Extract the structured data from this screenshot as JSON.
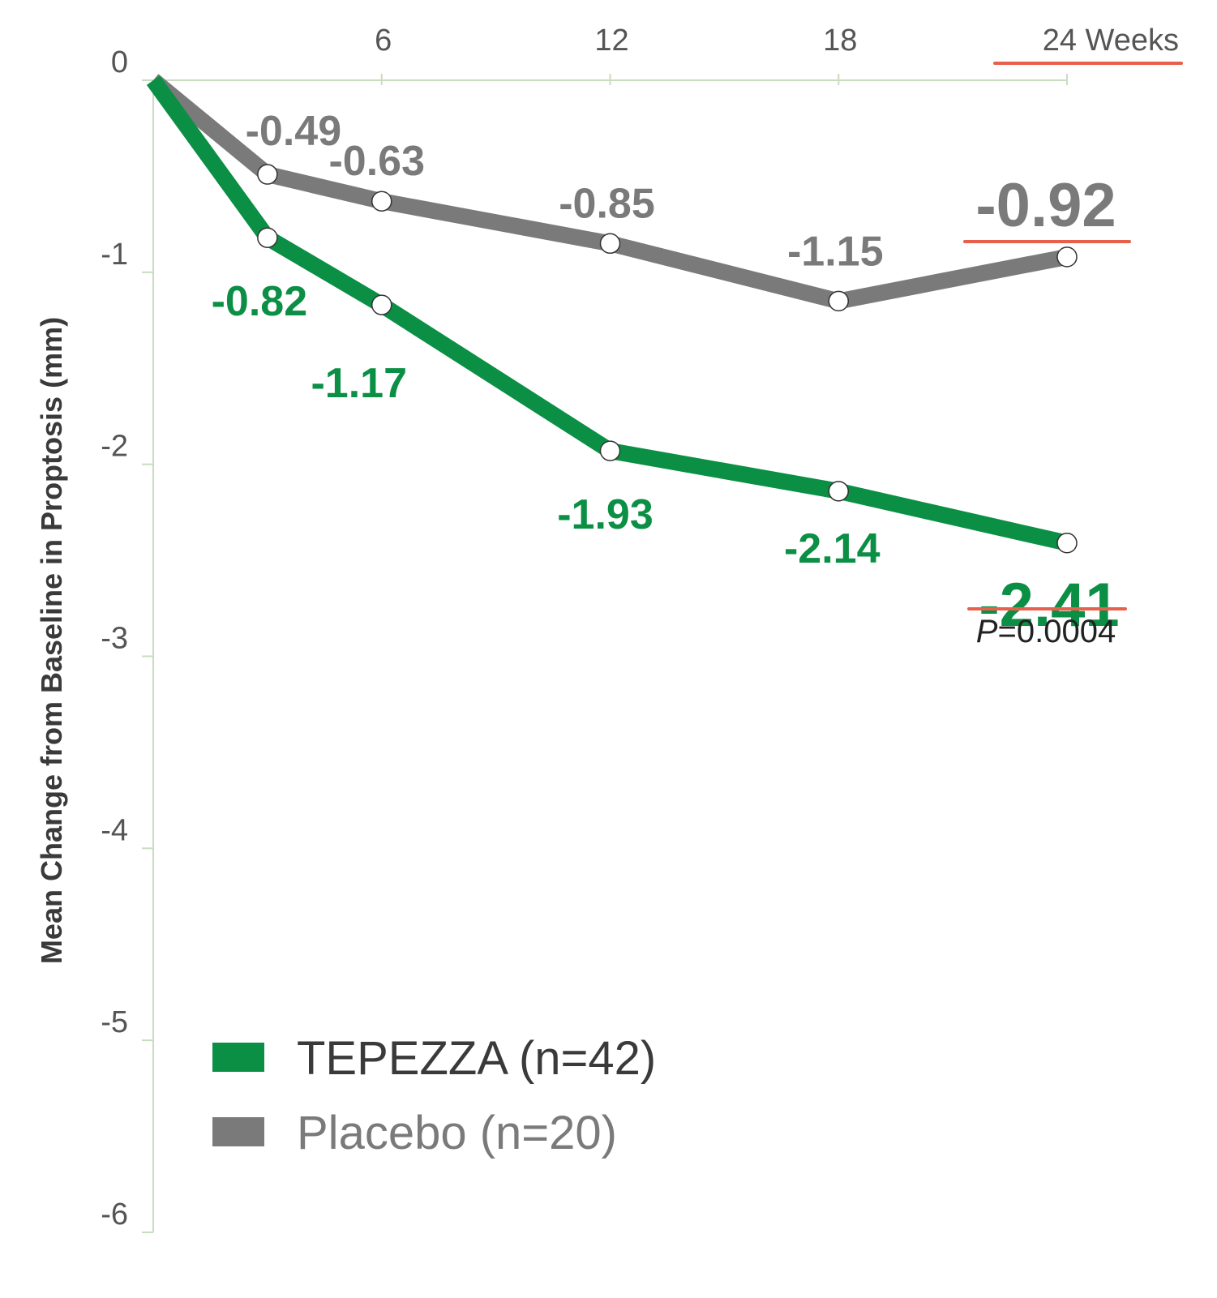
{
  "chart_data": {
    "type": "line",
    "ylabel": "Mean Change from Baseline in Proptosis (mm)",
    "x_tick_labels": [
      "6",
      "12",
      "18",
      "24 Weeks"
    ],
    "y_tick_labels": [
      "0",
      "-1",
      "-2",
      "-3",
      "-4",
      "-5",
      "-6"
    ],
    "ylim": [
      -6,
      0
    ],
    "xlim": [
      0,
      24
    ],
    "y_ticks": [
      0,
      -1,
      -2,
      -3,
      -4,
      -5,
      -6
    ],
    "x_ticks": [
      6,
      12,
      18,
      24
    ],
    "grid": false,
    "legend_position": "bottom-left",
    "x": [
      0,
      3,
      6,
      12,
      18,
      24
    ],
    "series": [
      {
        "name": "TEPEZZA (n=42)",
        "color": "#0a8f45",
        "values": [
          0,
          -0.82,
          -1.17,
          -1.93,
          -2.14,
          -2.41
        ],
        "labels": [
          "",
          "-0.82",
          "-1.17",
          "-1.93",
          "-2.14",
          "-2.41"
        ]
      },
      {
        "name": "Placebo (n=20)",
        "color": "#7a7a7a",
        "values": [
          0,
          -0.49,
          -0.63,
          -0.85,
          -1.15,
          -0.92
        ],
        "labels": [
          "",
          "-0.49",
          "-0.63",
          "-0.85",
          "-1.15",
          "-0.92"
        ]
      }
    ],
    "annotations": {
      "p_value_prefix": "P",
      "p_value_rest": "=0.0004"
    },
    "colors": {
      "axis": "#c8dcc0",
      "highlight_underline": "#e8604c",
      "tick_text": "#555555"
    }
  }
}
